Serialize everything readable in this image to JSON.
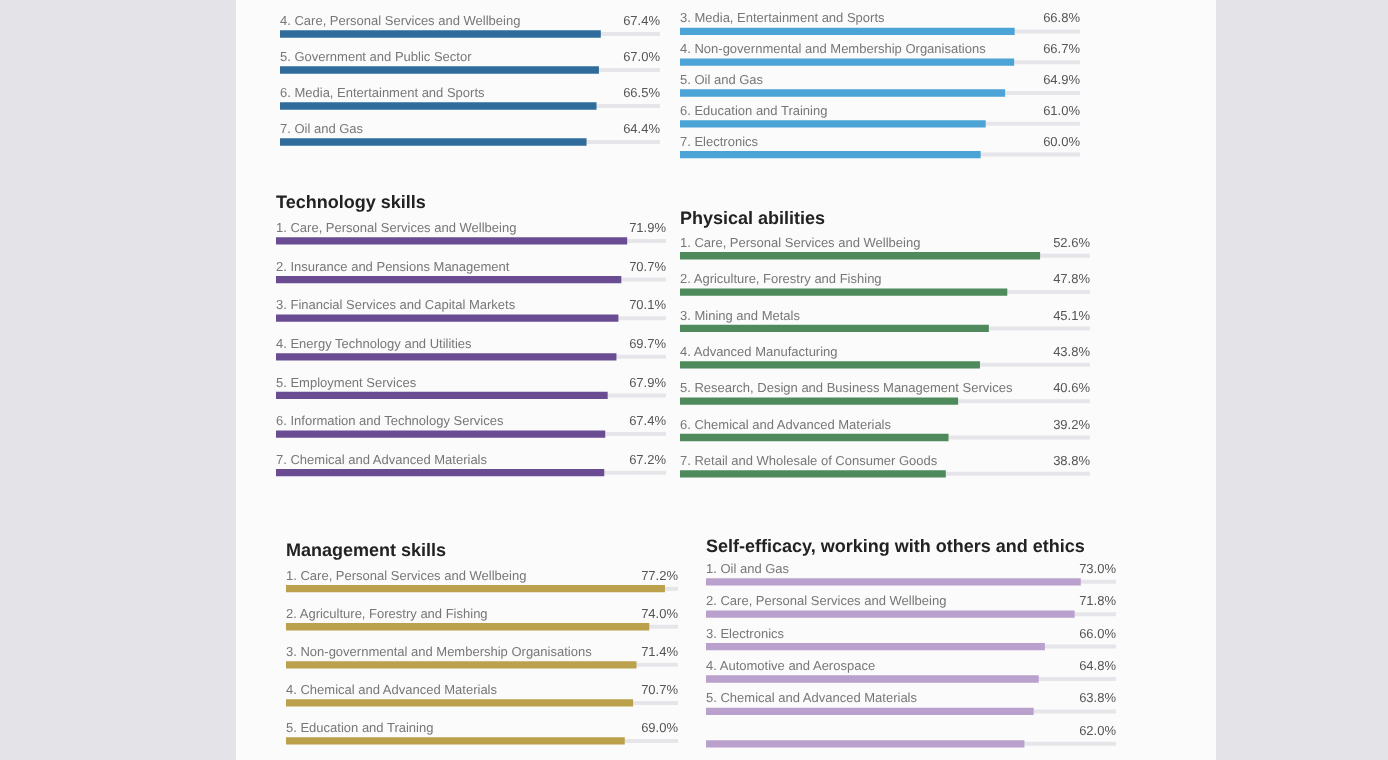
{
  "chart_data": [
    {
      "type": "bar",
      "orientation": "horizontal",
      "categories": [
        "4. Care, Personal Services and Wellbeing",
        "5. Government and Public Sector",
        "6. Media, Entertainment and Sports",
        "7. Oil and Gas"
      ],
      "values": [
        67.4,
        67.0,
        66.5,
        64.4
      ],
      "value_labels": [
        "67.4%",
        "67.0%",
        "66.5%",
        "64.4%"
      ],
      "color": "#2f6c9c",
      "tick_labels": false
    },
    {
      "type": "bar",
      "orientation": "horizontal",
      "categories": [
        "3. Media, Entertainment and Sports",
        "4. Non-governmental and Membership Organisations",
        "5. Oil and Gas",
        "6. Education and Training",
        "7. Electronics"
      ],
      "values": [
        66.8,
        66.7,
        64.9,
        61.0,
        60.0
      ],
      "value_labels": [
        "66.8%",
        "66.7%",
        "64.9%",
        "61.0%",
        "60.0%"
      ],
      "color": "#4ba3d6",
      "tick_labels": false
    },
    {
      "type": "bar",
      "orientation": "horizontal",
      "title": "Technology skills",
      "categories": [
        "1. Care, Personal Services and Wellbeing",
        "2. Insurance and Pensions Management",
        "3. Financial Services and Capital Markets",
        "4. Energy Technology and Utilities",
        "5. Employment Services",
        "6. Information and Technology Services",
        "7. Chemical and Advanced Materials"
      ],
      "values": [
        71.9,
        70.7,
        70.1,
        69.7,
        67.9,
        67.4,
        67.2
      ],
      "value_labels": [
        "71.9%",
        "70.7%",
        "70.1%",
        "69.7%",
        "67.9%",
        "67.4%",
        "67.2%"
      ],
      "color": "#6a4c93",
      "tick_labels": false
    },
    {
      "type": "bar",
      "orientation": "horizontal",
      "title": "Physical abilities",
      "categories": [
        "1. Care, Personal Services and Wellbeing",
        "2. Agriculture, Forestry and Fishing",
        "3. Mining and Metals",
        "4. Advanced Manufacturing",
        "5. Research, Design and Business Management Services",
        "6. Chemical and Advanced Materials",
        "7. Retail and Wholesale of Consumer Goods"
      ],
      "values": [
        52.6,
        47.8,
        45.1,
        43.8,
        40.6,
        39.2,
        38.8
      ],
      "value_labels": [
        "52.6%",
        "47.8%",
        "45.1%",
        "43.8%",
        "40.6%",
        "39.2%",
        "38.8%"
      ],
      "color": "#4e8a5b",
      "tick_labels": false
    },
    {
      "type": "bar",
      "orientation": "horizontal",
      "title": "Management skills",
      "categories": [
        "1. Care, Personal Services and Wellbeing",
        "2. Agriculture, Forestry and Fishing",
        "3. Non-governmental and Membership Organisations",
        "4. Chemical and Advanced Materials",
        "5. Education and Training"
      ],
      "values": [
        77.2,
        74.0,
        71.4,
        70.7,
        69.0
      ],
      "value_labels": [
        "77.2%",
        "74.0%",
        "71.4%",
        "70.7%",
        "69.0%"
      ],
      "color": "#bba14c",
      "tick_labels": false
    },
    {
      "type": "bar",
      "orientation": "horizontal",
      "title": "Self-efficacy, working with others and ethics",
      "categories": [
        "1. Oil and Gas",
        "2. Care, Personal Services and Wellbeing",
        "3. Electronics",
        "4. Automotive and Aerospace",
        "5. Chemical and Advanced Materials",
        null
      ],
      "values": [
        73.0,
        71.8,
        66.0,
        64.8,
        63.8,
        62.0
      ],
      "value_labels": [
        "73.0%",
        "71.8%",
        "66.0%",
        "64.8%",
        "63.8%",
        "62.0%"
      ],
      "color": "#b9a0cd",
      "tick_labels": false
    }
  ]
}
